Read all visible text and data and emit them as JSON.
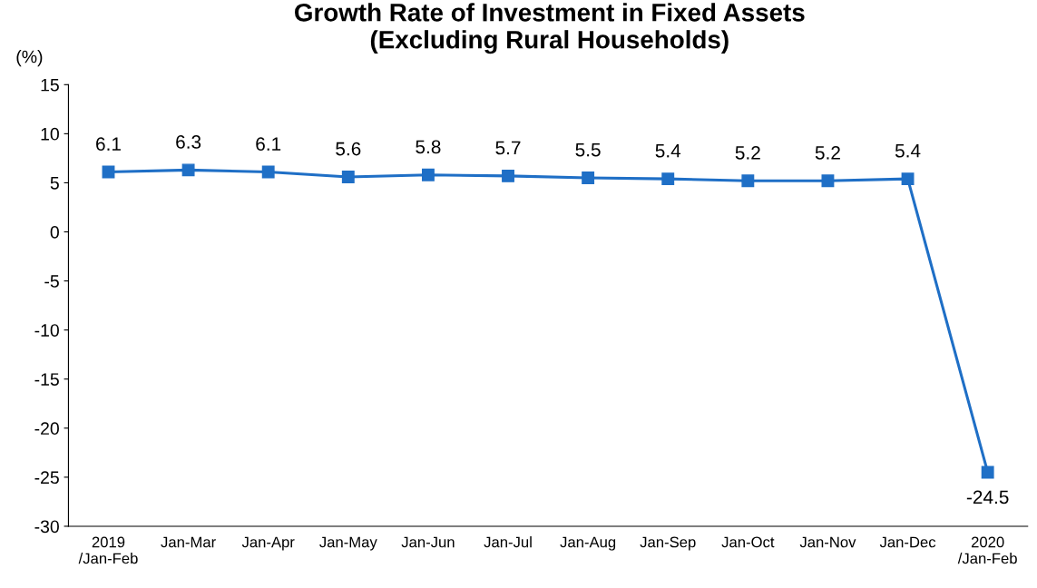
{
  "chart_data": {
    "type": "line",
    "title": "Growth Rate of Investment in Fixed Assets\n(Excluding Rural Households)",
    "ylabel": "(%)",
    "categories": [
      "2019\n/Jan-Feb",
      "Jan-Mar",
      "Jan-Apr",
      "Jan-May",
      "Jan-Jun",
      "Jan-Jul",
      "Jan-Aug",
      "Jan-Sep",
      "Jan-Oct",
      "Jan-Nov",
      "Jan-Dec",
      "2020\n/Jan-Feb"
    ],
    "series": [
      {
        "color": "#1f6fc6",
        "values": [
          6.1,
          6.3,
          6.1,
          5.6,
          5.8,
          5.7,
          5.5,
          5.4,
          5.2,
          5.2,
          5.4,
          -24.5
        ]
      }
    ],
    "ylim": [
      -30,
      15
    ],
    "yticks": [
      -30,
      -25,
      -20,
      -15,
      -10,
      -5,
      0,
      5,
      10,
      15
    ],
    "marker": "square",
    "line_style": "solid",
    "data_labels": true,
    "grid": false,
    "legend": false
  }
}
